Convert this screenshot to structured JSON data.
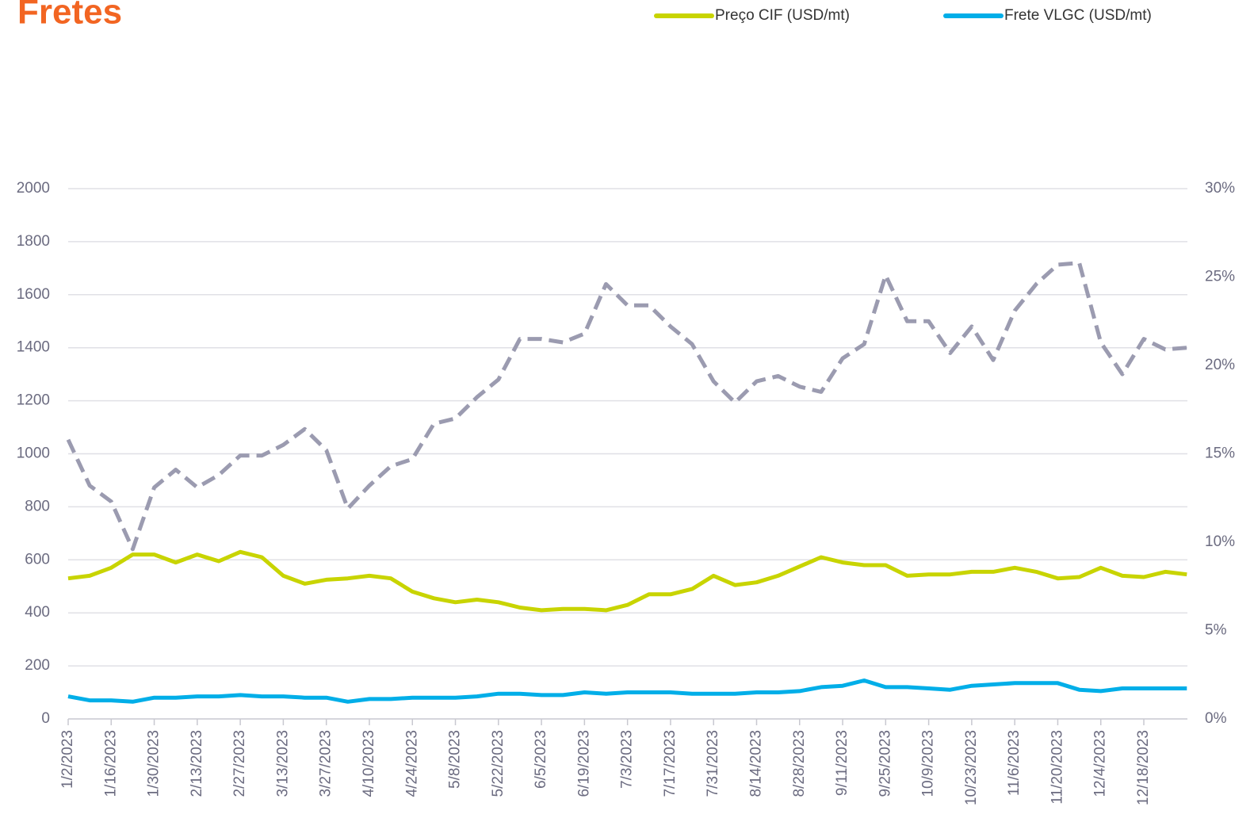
{
  "chart_data": {
    "type": "line",
    "title": "Fretes",
    "categories": [
      "1/2/2023",
      null,
      "1/16/2023",
      null,
      "1/30/2023",
      null,
      "2/13/2023",
      null,
      "2/27/2023",
      null,
      "3/13/2023",
      null,
      "3/27/2023",
      null,
      "4/10/2023",
      null,
      "4/24/2023",
      null,
      "5/8/2023",
      null,
      "5/22/2023",
      null,
      "6/5/2023",
      null,
      "6/19/2023",
      null,
      "7/3/2023",
      null,
      "7/17/2023",
      null,
      "7/31/2023",
      null,
      "8/14/2023",
      null,
      "8/28/2023",
      null,
      "9/11/2023",
      null,
      "9/25/2023",
      null,
      "10/9/2023",
      null,
      "10/23/2023",
      null,
      "11/6/2023",
      null,
      "11/20/2023",
      null,
      "12/4/2023",
      null,
      "12/18/2023",
      null,
      null
    ],
    "series": [
      {
        "name": "Preço CIF (USD/mt)",
        "color": "#c8d400",
        "values": [
          530,
          540,
          570,
          620,
          620,
          590,
          620,
          595,
          630,
          610,
          540,
          510,
          525,
          530,
          540,
          530,
          480,
          455,
          440,
          450,
          440,
          420,
          410,
          415,
          415,
          410,
          430,
          470,
          470,
          490,
          540,
          505,
          515,
          540,
          575,
          610,
          590,
          580,
          580,
          540,
          545,
          545,
          555,
          555,
          570,
          555,
          530,
          535,
          570,
          540,
          535,
          555,
          545
        ]
      },
      {
        "name": "Frete VLGC (USD/mt)",
        "color": "#00aee8",
        "values": [
          85,
          70,
          70,
          65,
          80,
          80,
          85,
          85,
          90,
          85,
          85,
          80,
          80,
          65,
          75,
          75,
          80,
          80,
          80,
          85,
          95,
          95,
          90,
          90,
          100,
          95,
          100,
          100,
          100,
          95,
          95,
          95,
          100,
          100,
          105,
          120,
          125,
          145,
          120,
          120,
          115,
          110,
          125,
          130,
          135,
          135,
          135,
          110,
          105,
          115,
          115,
          115,
          115
        ]
      },
      {
        "color": "#9b9bb0",
        "dashed": true,
        "axis": "y2",
        "values": [
          15.8,
          13.2,
          12.3,
          9.6,
          13.1,
          14.1,
          13.1,
          13.8,
          14.9,
          14.9,
          15.5,
          16.4,
          15.2,
          11.9,
          13.2,
          14.3,
          14.7,
          16.7,
          17.0,
          18.2,
          19.2,
          21.5,
          21.5,
          21.3,
          21.8,
          24.6,
          23.4,
          23.4,
          22.2,
          21.2,
          19.1,
          17.9,
          19.1,
          19.4,
          18.8,
          18.5,
          20.4,
          21.2,
          25.1,
          22.5,
          22.5,
          20.7,
          22.2,
          20.3,
          23.1,
          24.6,
          25.7,
          25.8,
          21.3,
          19.5,
          21.5,
          20.9,
          21.0
        ]
      }
    ],
    "ylim": [
      0,
      2000
    ],
    "yticks": [
      0,
      200,
      400,
      600,
      800,
      1000,
      1200,
      1400,
      1600,
      1800,
      2000
    ],
    "y2lim": [
      0,
      30
    ],
    "y2ticks": [
      {
        "value": 0,
        "label": "0%"
      },
      {
        "value": 5,
        "label": "5%"
      },
      {
        "value": 10,
        "label": "10%"
      },
      {
        "value": 15,
        "label": "15%"
      },
      {
        "value": 20,
        "label": "20%"
      },
      {
        "value": 25,
        "label": "25%"
      },
      {
        "value": 30,
        "label": "30%"
      }
    ],
    "grid": true,
    "legend": "top-right"
  }
}
